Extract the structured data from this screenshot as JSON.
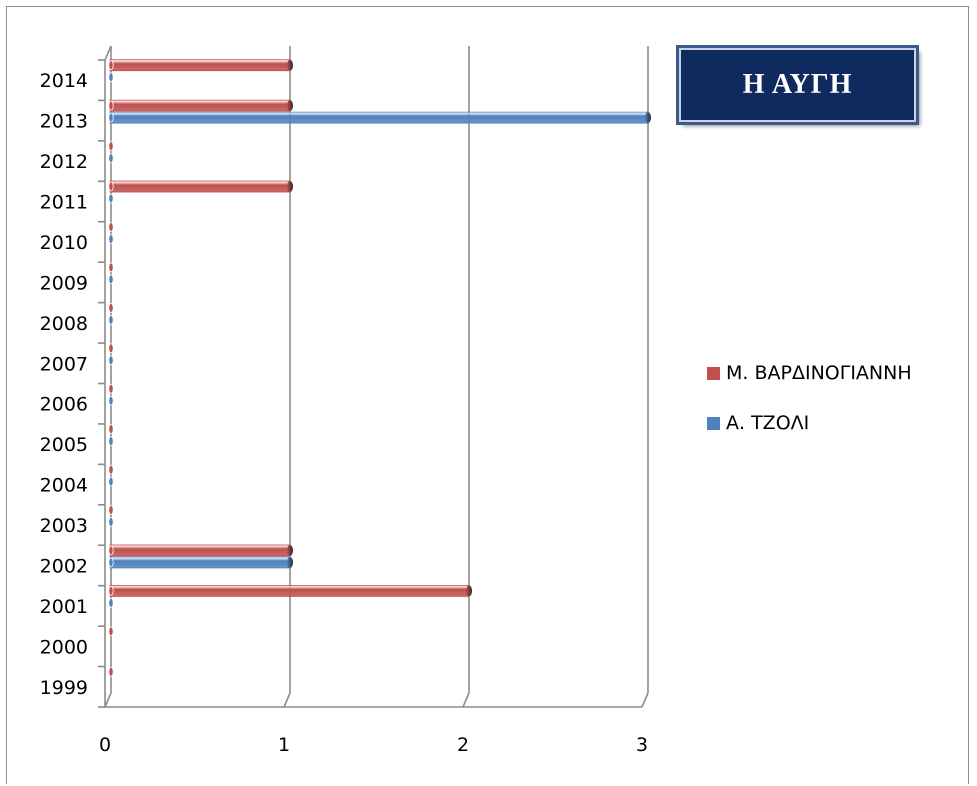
{
  "chart_data": {
    "type": "bar",
    "orientation": "horizontal",
    "title": "Η ΑΥΓΗ",
    "categories": [
      "1999",
      "2000",
      "2001",
      "2002",
      "2003",
      "2004",
      "2005",
      "2006",
      "2007",
      "2008",
      "2009",
      "2010",
      "2011",
      "2012",
      "2013",
      "2014"
    ],
    "series": [
      {
        "name": "Μ. ΒΑΡΔΙΝΟΓΙΑΝΝΗ",
        "color": "#c0504d",
        "values": [
          0,
          0,
          2,
          1,
          0,
          0,
          0,
          0,
          0,
          0,
          0,
          0,
          1,
          0,
          1,
          1
        ]
      },
      {
        "name": "Α. ΤΖΟΛΙ",
        "color": "#4f81bd",
        "values": [
          null,
          null,
          0,
          1,
          0,
          0,
          0,
          0,
          0,
          0,
          0,
          0,
          0,
          0,
          3,
          0
        ]
      }
    ],
    "xlim": [
      0,
      3
    ],
    "xticks": [
      "0",
      "1",
      "2",
      "3"
    ],
    "grid": true,
    "legend_position": "right"
  }
}
